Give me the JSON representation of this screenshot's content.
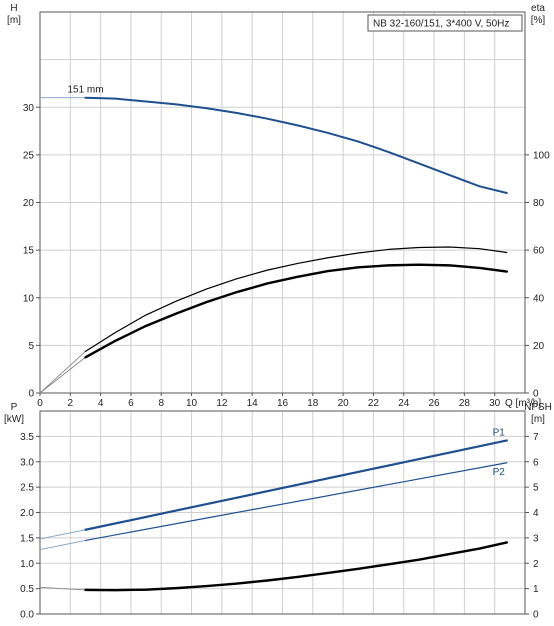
{
  "colors": {
    "blue": "#1f4f8f",
    "black": "#000000",
    "thin_blue": "#7f9fc7",
    "thin_gray": "#888888"
  },
  "chart_data": [
    {
      "type": "line",
      "panel": "head-efficiency",
      "legend_box": "NB 32-160/151, 3*400 V, 50Hz",
      "legend_placement": "top-right",
      "grid": true,
      "xlabel": "Q [m³/h]",
      "x_ticks": [
        "0",
        "2",
        "4",
        "6",
        "8",
        "10",
        "12",
        "14",
        "16",
        "18",
        "20",
        "22",
        "24",
        "26",
        "28",
        "30"
      ],
      "xlim": [
        0,
        32
      ],
      "left_axis": {
        "label_line1": "H",
        "label_line2": "[m]",
        "ticks": [
          "0",
          "5",
          "10",
          "15",
          "20",
          "25",
          "30"
        ],
        "ylim": [
          0,
          40
        ]
      },
      "right_axis": {
        "label_line1": "eta",
        "label_line2": "[%]",
        "ticks": [
          "0",
          "20",
          "40",
          "60",
          "80",
          "100"
        ],
        "ylim": [
          0,
          160
        ]
      },
      "series": [
        {
          "name": "151 mm",
          "axis": "left",
          "color_key": "blue",
          "extension": {
            "x": [
              0,
              3
            ],
            "y": [
              31.0,
              31.0
            ]
          },
          "x": [
            3,
            5,
            7,
            9,
            11,
            13,
            15,
            17,
            19,
            21,
            23,
            25,
            27,
            29,
            30.8
          ],
          "y": [
            31.0,
            30.9,
            30.6,
            30.3,
            29.9,
            29.4,
            28.8,
            28.1,
            27.3,
            26.4,
            25.3,
            24.1,
            22.9,
            21.7,
            21.0
          ]
        },
        {
          "name": "",
          "axis": "right",
          "color_key": "black",
          "stroke": 1.2,
          "extension": {
            "x": [
              0,
              3
            ],
            "y": [
              0,
              17.5
            ]
          },
          "x": [
            3,
            5,
            7,
            9,
            11,
            13,
            15,
            17,
            19,
            21,
            23,
            25,
            27,
            29,
            30.8
          ],
          "y": [
            17.5,
            25.5,
            32.8,
            38.6,
            43.7,
            48.0,
            51.6,
            54.4,
            56.8,
            58.8,
            60.3,
            61.1,
            61.3,
            60.6,
            59.0
          ]
        },
        {
          "name": "",
          "axis": "right",
          "color_key": "black",
          "stroke": 2.4,
          "extension": {
            "x": [
              0,
              3
            ],
            "y": [
              0,
              15.0
            ]
          },
          "x": [
            3,
            5,
            7,
            9,
            11,
            13,
            15,
            17,
            19,
            21,
            23,
            25,
            27,
            29,
            30.8
          ],
          "y": [
            15.0,
            22.0,
            28.2,
            33.4,
            38.2,
            42.4,
            46.0,
            48.8,
            51.2,
            52.8,
            53.6,
            53.9,
            53.6,
            52.5,
            51.0
          ]
        }
      ]
    },
    {
      "type": "line",
      "panel": "power-npsh",
      "grid": true,
      "xlim": [
        0,
        32
      ],
      "left_axis": {
        "label_line1": "P",
        "label_line2": "[kW]",
        "ticks": [
          "0.0",
          "0.5",
          "1.0",
          "1.5",
          "2.0",
          "2.5",
          "3.0",
          "3.5"
        ],
        "ylim": [
          0,
          4.0
        ]
      },
      "right_axis": {
        "label_line1": "NPSH",
        "label_line2": "[m]",
        "ticks": [
          "0",
          "1",
          "2",
          "3",
          "4",
          "5",
          "6",
          "7"
        ],
        "ylim": [
          0,
          8
        ]
      },
      "series": [
        {
          "name": "P1",
          "axis": "left",
          "color_key": "blue",
          "stroke": 2.2,
          "extension": {
            "x": [
              0,
              3
            ],
            "y": [
              1.48,
              1.66
            ]
          },
          "x": [
            3,
            30.8
          ],
          "y": [
            1.66,
            3.42
          ]
        },
        {
          "name": "P2",
          "axis": "left",
          "color_key": "blue",
          "stroke": 1.2,
          "extension": {
            "x": [
              0,
              3
            ],
            "y": [
              1.27,
              1.45
            ]
          },
          "x": [
            3,
            30.8
          ],
          "y": [
            1.45,
            2.98
          ]
        },
        {
          "name": "",
          "axis": "right",
          "color_key": "black",
          "stroke": 2.4,
          "extension": {
            "x": [
              0,
              3
            ],
            "y": [
              1.05,
              0.95
            ]
          },
          "x": [
            3,
            5,
            7,
            9,
            11,
            13,
            15,
            17,
            19,
            21,
            23,
            25,
            27,
            29,
            30.8
          ],
          "y": [
            0.95,
            0.94,
            0.96,
            1.02,
            1.1,
            1.2,
            1.32,
            1.46,
            1.62,
            1.78,
            1.96,
            2.14,
            2.36,
            2.58,
            2.82
          ]
        }
      ]
    }
  ]
}
